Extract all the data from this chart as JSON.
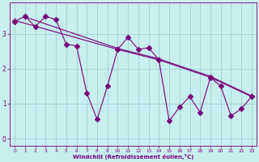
{
  "background_color": "#c8eef0",
  "line_color": "#770077",
  "x_values": [
    0,
    1,
    2,
    3,
    4,
    5,
    6,
    7,
    8,
    9,
    10,
    11,
    12,
    13,
    14,
    15,
    16,
    17,
    18,
    19,
    20,
    21,
    22,
    23
  ],
  "jagged_line": [
    3.35,
    3.5,
    3.2,
    3.5,
    3.4,
    2.7,
    2.65,
    1.3,
    0.55,
    1.5,
    2.55,
    2.9,
    2.55,
    2.6,
    2.25,
    0.5,
    0.9,
    1.2,
    0.75,
    1.75,
    1.5,
    0.65,
    0.85,
    1.2
  ],
  "straight1_x": [
    0,
    10,
    14,
    19,
    23
  ],
  "straight1_y": [
    3.38,
    2.55,
    2.25,
    1.75,
    1.2
  ],
  "straight2_x": [
    1,
    10,
    14,
    19,
    23
  ],
  "straight2_y": [
    3.48,
    2.58,
    2.28,
    1.78,
    1.22
  ],
  "xlabel": "Windchill (Refroidissement éolien,°C)",
  "yticks": [
    0,
    1,
    2,
    3
  ],
  "xticks": [
    0,
    1,
    2,
    3,
    4,
    5,
    6,
    7,
    8,
    9,
    10,
    11,
    12,
    13,
    14,
    15,
    16,
    17,
    18,
    19,
    20,
    21,
    22,
    23
  ],
  "xlim": [
    -0.5,
    23.5
  ],
  "ylim": [
    -0.2,
    3.9
  ],
  "grid_color": "#99cccc",
  "tick_color": "#770077",
  "label_color": "#770077",
  "jagged_marker": "D",
  "straight_marker": "+",
  "jagged_ms": 3.0,
  "straight_ms": 4.0,
  "line_width": 0.8,
  "straight_lw": 0.8
}
